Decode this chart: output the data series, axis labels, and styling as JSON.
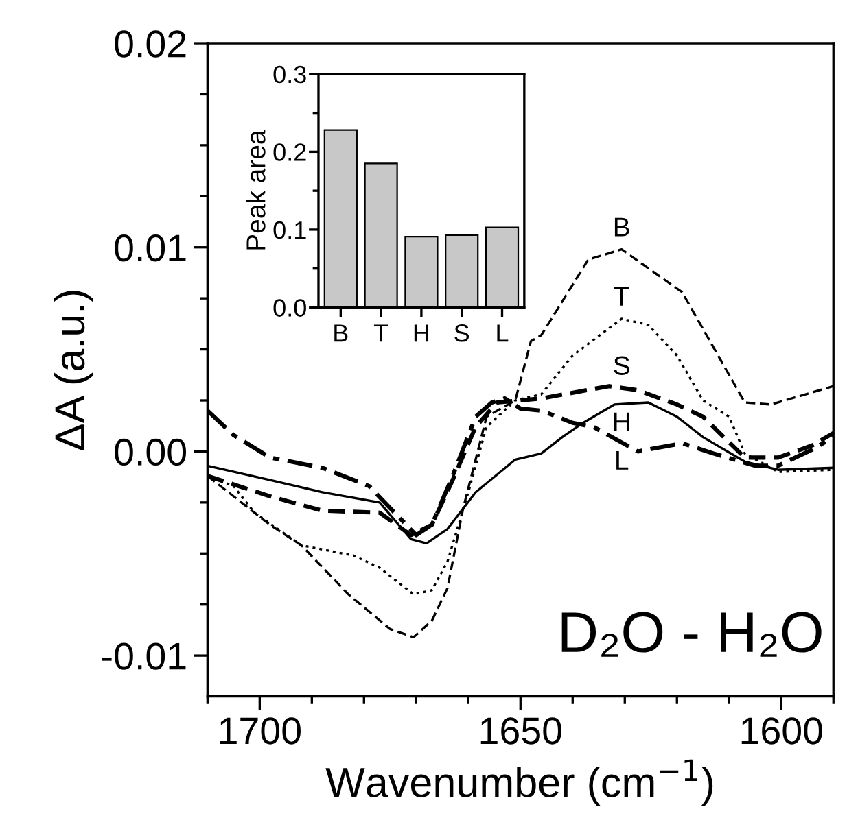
{
  "chart_data": [
    {
      "type": "line",
      "xlabel": "Wavenumber (cm$^{−1}$)",
      "ylabel": "ΔA (a.u.)",
      "annotations": [
        "D₂O - H₂O"
      ],
      "xlim": [
        1710,
        1590
      ],
      "ylim": [
        -0.012,
        0.02
      ],
      "xticks": [
        1700,
        1650,
        1600
      ],
      "yticks": [
        -0.01,
        {
          "value": 0,
          "label": "0.00"
        },
        0.01,
        0.02
      ],
      "grid": false,
      "legend": false,
      "marker": "none",
      "series": [
        {
          "name": "B",
          "color": "#000000",
          "line_style": "dashed",
          "x": [
            1710,
            1698,
            1692,
            1683,
            1675,
            1670.5,
            1667,
            1664,
            1661,
            1656.5,
            1651,
            1648,
            1646,
            1637,
            1630.6,
            1619,
            1607,
            1602,
            1590
          ],
          "values": [
            -0.0012,
            -0.0036,
            -0.0046,
            -0.007,
            -0.0087,
            -0.0091,
            -0.0083,
            -0.0067,
            -0.0028,
            0.0017,
            0.0025,
            0.0054,
            0.0057,
            0.0094,
            0.0099,
            0.0078,
            0.0024,
            0.0023,
            0.0032
          ]
        },
        {
          "name": "T",
          "color": "#000000",
          "line_style": "dotted",
          "x": [
            1710,
            1705,
            1701,
            1692,
            1682,
            1677,
            1670.5,
            1667,
            1664,
            1660,
            1656.5,
            1651,
            1646,
            1640,
            1630.6,
            1625.5,
            1620,
            1615,
            1610,
            1607,
            1600.6,
            1590
          ],
          "values": [
            -0.0012,
            -0.0017,
            -0.003,
            -0.0046,
            -0.0051,
            -0.0057,
            -0.007,
            -0.0068,
            -0.0054,
            -0.002,
            0.0012,
            0.0025,
            0.0028,
            0.0047,
            0.0065,
            0.0062,
            0.0047,
            0.0025,
            0.0017,
            -0.0001,
            -0.001,
            -0.0009
          ]
        },
        {
          "name": "S",
          "color": "#000000",
          "line_style": "dashed",
          "x": [
            1710,
            1698,
            1688,
            1677,
            1671,
            1667,
            1663,
            1658.6,
            1654.5,
            1650,
            1646,
            1633,
            1627.5,
            1620,
            1615,
            1607,
            1600.6,
            1594,
            1590
          ],
          "values": [
            -0.0012,
            -0.0022,
            -0.0029,
            -0.003,
            -0.0041,
            -0.0036,
            -0.0014,
            0.0012,
            0.0024,
            0.0025,
            0.0026,
            0.0032,
            0.003,
            0.0023,
            0.0017,
            -0.0003,
            -0.0003,
            0.0003,
            0.0009
          ]
        },
        {
          "name": "H",
          "color": "#000000",
          "line_style": "solid",
          "x": [
            1710,
            1698,
            1688,
            1677,
            1671,
            1668,
            1664,
            1658.6,
            1651,
            1646,
            1642,
            1638,
            1632,
            1625.5,
            1620,
            1615,
            1607,
            1600.6,
            1590
          ],
          "values": [
            -0.0007,
            -0.0014,
            -0.002,
            -0.0025,
            -0.0043,
            -0.0045,
            -0.0038,
            -0.002,
            -0.0004,
            -0.0001,
            0.0007,
            0.0014,
            0.0023,
            0.0024,
            0.0017,
            0.0007,
            -0.0005,
            -0.0009,
            -0.0008
          ]
        },
        {
          "name": "L",
          "color": "#000000",
          "line_style": "dashdot",
          "x": [
            1710,
            1705,
            1698,
            1688,
            1679,
            1673,
            1670,
            1667,
            1663,
            1658.6,
            1655.5,
            1653,
            1650,
            1646,
            1640,
            1636,
            1627.5,
            1619,
            1613,
            1605,
            1600.6,
            1594,
            1590
          ],
          "values": [
            0.002,
            0.0008,
            -0.0003,
            -0.0008,
            -0.0017,
            -0.0033,
            -0.0041,
            -0.0036,
            -0.0012,
            0.0017,
            0.0024,
            0.0026,
            0.0021,
            0.002,
            0.0014,
            0.0012,
            0.0,
            0.0004,
            -0.0001,
            -0.0007,
            -0.0007,
            0.0001,
            0.0007
          ]
        }
      ]
    },
    {
      "type": "bar",
      "ylabel": "Peak area",
      "categories": [
        "B",
        "T",
        "H",
        "S",
        "L"
      ],
      "values": [
        0.228,
        0.185,
        0.091,
        0.093,
        0.103
      ],
      "color": "#c8c8c8",
      "ylim": [
        0,
        0.3
      ],
      "yticks": [
        {
          "value": 0,
          "label": "0.0"
        },
        0.1,
        0.2,
        0.3
      ],
      "grid": false,
      "legend": false
    }
  ]
}
